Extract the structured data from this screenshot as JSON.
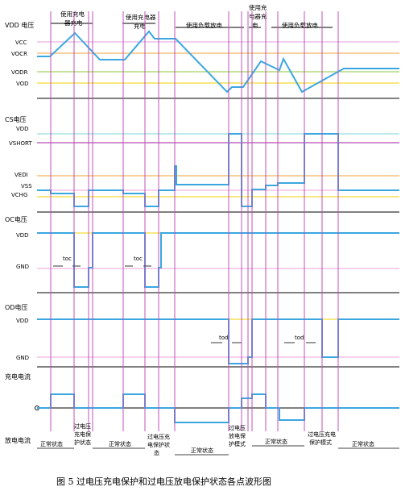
{
  "caption": "图 5 过电压充电保护和过电压放电保护状态各点波形图",
  "vdd_panel": {
    "title": "VDD 电压",
    "levels": [
      {
        "label": "VCC",
        "color": "#e0a0d8"
      },
      {
        "label": "VOCR",
        "color": "#f2a23a"
      },
      {
        "label": "VODR",
        "color": "#8cc63f"
      },
      {
        "label": "VOD",
        "color": "#f0d000"
      }
    ]
  },
  "cs_panel": {
    "title": "CS电压",
    "levels": [
      {
        "label": "VDD",
        "color": "#7fd3d3"
      },
      {
        "label": "VSHORT",
        "color": "#a020a0"
      },
      {
        "label": "VEDI",
        "color": "#f2a23a"
      },
      {
        "label": "VSS",
        "color": "#f0a0d8"
      },
      {
        "label": "VCHG",
        "color": "#f0d000"
      }
    ]
  },
  "oc_panel": {
    "title": "OC电压",
    "levels": [
      {
        "label": "VDD",
        "color": "#f0d000"
      },
      {
        "label": "GND",
        "color": "#f0a0d8"
      }
    ],
    "toc_label": "toc"
  },
  "od_panel": {
    "title": "OD电压",
    "levels": [
      {
        "label": "VDD",
        "color": "#f0d000"
      },
      {
        "label": "GND",
        "color": "#f0a0d8"
      }
    ],
    "tod_label": "tod"
  },
  "current_panel": {
    "charge_label": "充电电流",
    "discharge_label": "放电电流"
  },
  "phase_labels": {
    "charge1": "使用充电器充电",
    "charge2": "使用充电器充电",
    "load1": "使用负载放电",
    "charge3": "使用充电器充电",
    "load2": "使用负载放电"
  },
  "state_labels": {
    "normal1": "正常状态",
    "ovc": "过电压充电保护状态",
    "normal2": "正常状态",
    "ovc2": "过电压充电保护状态",
    "normal3": "正常状态",
    "ovd": "过电压放电保护模式",
    "normal4": "正常状态",
    "ovc3": "过电压充电保护模式",
    "normal5": "正常状态"
  },
  "colors": {
    "wave": "#3aa7e0",
    "marker": "#c050b8",
    "axis": "#000000"
  }
}
